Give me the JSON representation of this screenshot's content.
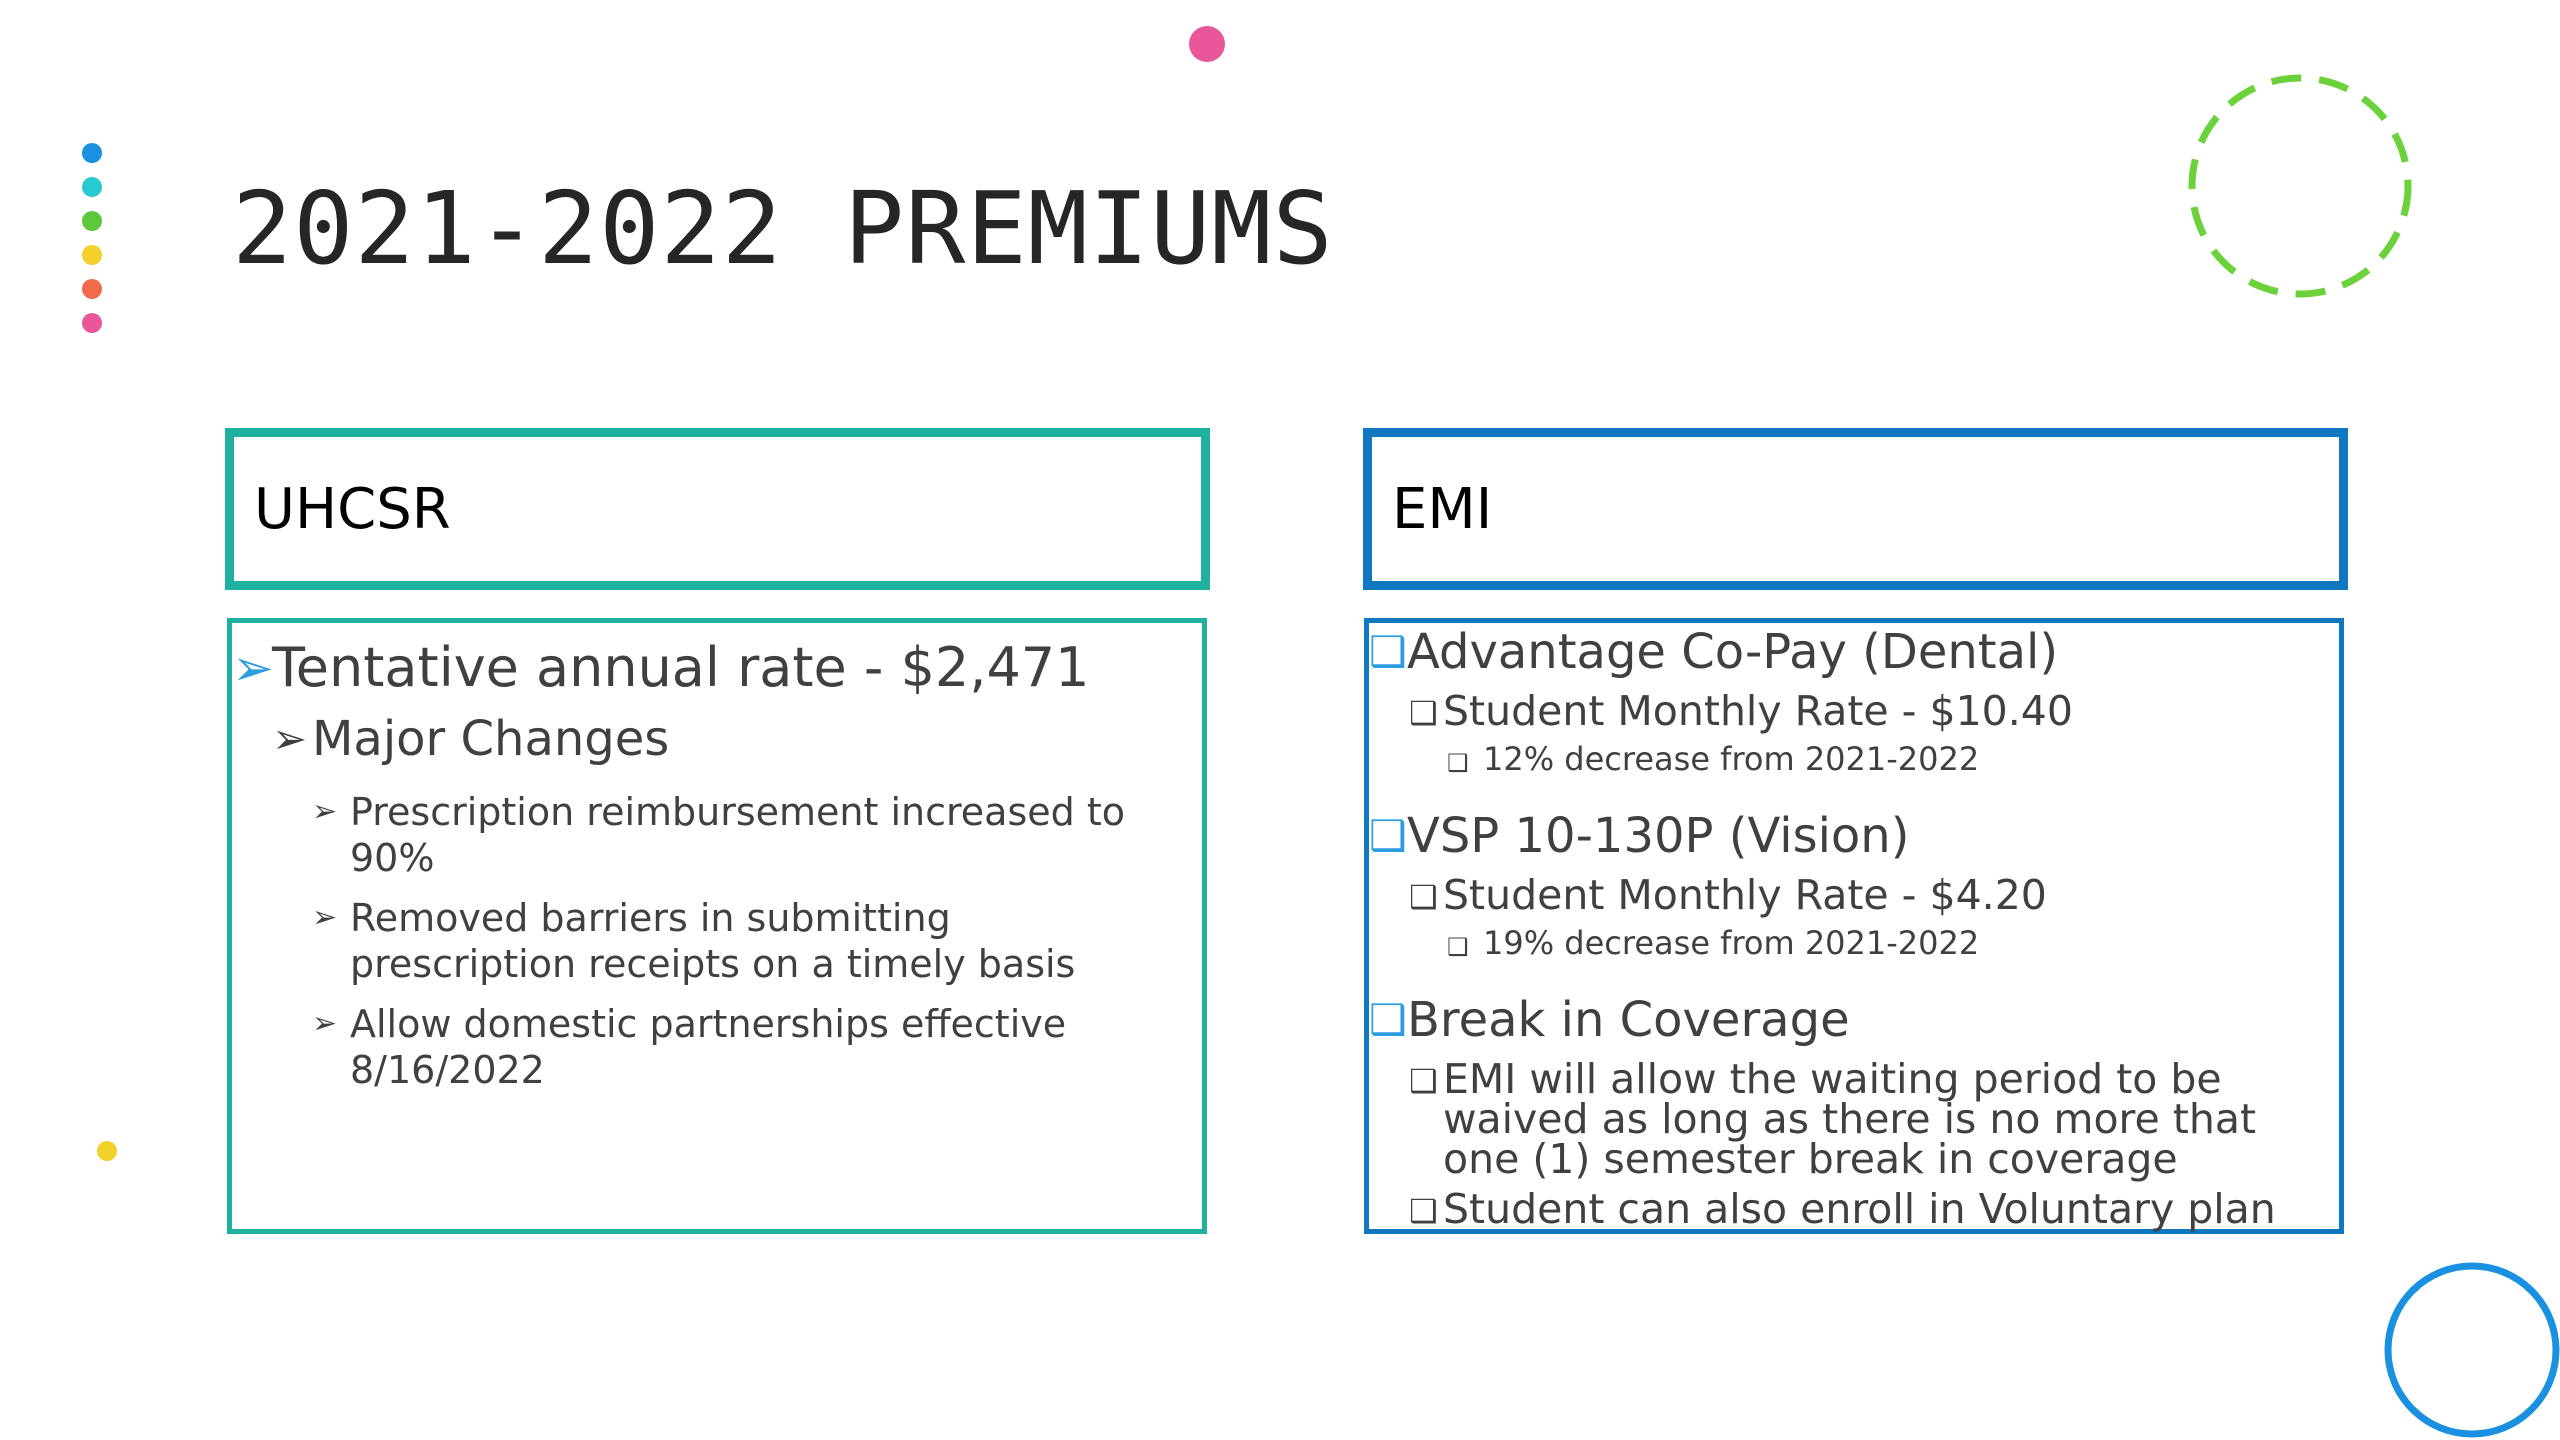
{
  "title": "2021-2022 PREMIUMS",
  "colors": {
    "teal": "#1fb0a0",
    "blue": "#1078c0",
    "bullet_blue": "#2e9de0",
    "decor_pink": "#e8579a",
    "decor_green_dashed": "#6cd23c",
    "decor_circle_blue": "#1a90e0"
  },
  "left": {
    "header": "UHCSR",
    "bullet_icons": {
      "l1": "➢",
      "l2": "➢",
      "l3": "➢"
    },
    "level1": "Tentative annual rate - $2,471",
    "level2": "Major Changes",
    "items": [
      "Prescription reimbursement increased to 90%",
      "Removed barriers in submitting prescription receipts on a timely basis",
      "Allow domestic partnerships effective 8/16/2022"
    ]
  },
  "right": {
    "header": "EMI",
    "bullet_icon": "❑",
    "sections": [
      {
        "label": "Advantage Co-Pay (Dental)",
        "sub": "Student Monthly Rate - $10.40",
        "note": "12% decrease from 2021-2022"
      },
      {
        "label": "VSP 10-130P (Vision)",
        "sub": "Student Monthly Rate - $4.20",
        "note": "19% decrease from 2021-2022"
      },
      {
        "label": "Break in Coverage",
        "sub1": "EMI will allow the waiting period to be waived as long as there is no more that one (1) semester break in coverage",
        "sub2": "Student can also enroll in Voluntary plan"
      }
    ]
  }
}
